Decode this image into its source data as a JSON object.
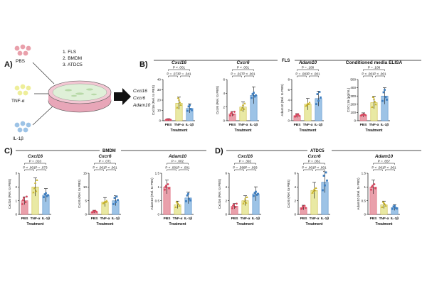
{
  "colors": {
    "PBS": "#e9a0ab",
    "TNF": "#e9e9a4",
    "IL1B": "#9dc3e6",
    "PBSd": "#d9475f",
    "TNFd": "#c9b32a",
    "IL1Bd": "#3f7fc1"
  },
  "sections": {
    "A": "A)",
    "B": "B)",
    "C": "C)",
    "D": "D)",
    "FLS": "FLS",
    "BMDM": "BMDM",
    "ATDC5": "ATDC5"
  },
  "schematic": {
    "groups": [
      "PBS",
      "TNF-α",
      "IL-1β"
    ],
    "cells": [
      "1.  FLS",
      "2.  BMDM",
      "3.  ATDC5"
    ],
    "genes": [
      "Cxcl16",
      "Cxcr6",
      "Adam10"
    ]
  },
  "chart_data": [
    {
      "id": "B1",
      "type": "bar",
      "title": "Cxcl16",
      "ylabel": "Cxcl16 (Rel. to PBS)",
      "xlabel": "Treatment",
      "categories": [
        "PBS",
        "TNF-α",
        "IL-1β"
      ],
      "values": [
        1,
        17,
        12
      ],
      "ylim": [
        0,
        40
      ],
      "yticks": [
        0,
        10,
        20,
        30,
        40
      ],
      "pvalues": [
        "P = .073",
        "P < .001",
        "P = .041"
      ]
    },
    {
      "id": "B2",
      "type": "bar",
      "title": "Cxcr6",
      "ylabel": "Cxcr6 (Rel. to PBS)",
      "xlabel": "Treatment",
      "categories": [
        "PBS",
        "TNF-α",
        "IL-1β"
      ],
      "values": [
        1,
        2,
        3.7
      ],
      "ylim": [
        0,
        6
      ],
      "yticks": [
        0,
        2,
        4,
        6
      ],
      "pvalues": [
        "P = .027",
        "P < .001",
        "P < .001"
      ]
    },
    {
      "id": "B3",
      "type": "bar",
      "title": "Adam10",
      "ylabel": "Adam10 (Rel. to PBS)",
      "xlabel": "Treatment",
      "categories": [
        "PBS",
        "TNF-α",
        "IL-1β"
      ],
      "values": [
        1,
        3.2,
        4.3
      ],
      "ylim": [
        0,
        8
      ],
      "yticks": [
        0,
        2,
        4,
        6,
        8
      ],
      "pvalues": [
        "P = .003",
        "P = .108",
        "P < .001"
      ]
    },
    {
      "id": "B4",
      "type": "bar",
      "title": "Conditioned media ELISA",
      "ylabel": "CXCL16 (pg/mL)",
      "xlabel": "Treatment",
      "categories": [
        "PBS",
        "TNF-α",
        "IL-1β"
      ],
      "values": [
        70,
        220,
        300
      ],
      "ylim": [
        0,
        500
      ],
      "yticks": [
        0,
        100,
        200,
        300,
        400,
        500
      ],
      "pvalues": [
        "P < .001",
        "P = .108",
        "P < .001"
      ]
    },
    {
      "id": "C1",
      "type": "bar",
      "title": "Cxcl16",
      "ylabel": "Cxcl16 (Rel. to PBS)",
      "xlabel": "Treatment",
      "categories": [
        "PBS",
        "TNF-α",
        "IL-1β"
      ],
      "values": [
        1,
        2,
        1.4
      ],
      "ylim": [
        0,
        3
      ],
      "yticks": [
        0,
        1,
        2,
        3
      ],
      "pvalues": [
        "P < .001",
        "P = .010",
        "P = .073"
      ]
    },
    {
      "id": "C2",
      "type": "bar",
      "title": "Cxcr6",
      "ylabel": "Cxcr6 (Rel. to PBS)",
      "xlabel": "Treatment",
      "categories": [
        "PBS",
        "TNF-α",
        "IL-1β"
      ],
      "values": [
        1,
        4.5,
        5
      ],
      "ylim": [
        0,
        15
      ],
      "yticks": [
        0,
        5,
        10,
        15
      ],
      "pvalues": [
        "P < .001",
        "P = .071",
        "P < .001"
      ]
    },
    {
      "id": "C3",
      "type": "bar",
      "title": "Adam10",
      "ylabel": "Adam10 (Rel. to PBS)",
      "xlabel": "Treatment",
      "categories": [
        "PBS",
        "TNF-α",
        "IL-1β"
      ],
      "values": [
        1,
        0.35,
        0.6
      ],
      "ylim": [
        0,
        1.5
      ],
      "yticks": [
        0,
        0.5,
        1,
        1.5
      ],
      "pvalues": [
        "P < .001",
        "P = .002",
        "P < .001"
      ]
    },
    {
      "id": "D1",
      "type": "bar",
      "title": "Cxcl16",
      "ylabel": "Cxcl16 (Rel. to PBS)",
      "xlabel": "Treatment",
      "categories": [
        "PBS",
        "TNF-α",
        "IL-1β"
      ],
      "values": [
        1.2,
        2,
        3
      ],
      "ylim": [
        0,
        6
      ],
      "yticks": [
        0,
        2,
        4,
        6
      ],
      "pvalues": [
        "P = .568",
        "P = .392",
        "P = .093"
      ]
    },
    {
      "id": "D2",
      "type": "bar",
      "title": "Cxcr6",
      "ylabel": "Cxcr6 (Rel. to PBS)",
      "xlabel": "Treatment",
      "categories": [
        "PBS",
        "TNF-α",
        "IL-1β"
      ],
      "values": [
        1,
        3.5,
        4.7
      ],
      "ylim": [
        0,
        6
      ],
      "yticks": [
        0,
        2,
        4,
        6
      ],
      "pvalues": [
        "P < .001",
        "P = .061",
        "P < .001"
      ]
    },
    {
      "id": "D3",
      "type": "bar",
      "title": "Adam10",
      "ylabel": "Adam10 (Rel. to PBS)",
      "xlabel": "Treatment",
      "categories": [
        "PBS",
        "TNF-α",
        "IL-1β"
      ],
      "values": [
        1,
        0.35,
        0.25
      ],
      "ylim": [
        0,
        1.5
      ],
      "yticks": [
        0,
        0.5,
        1,
        1.5
      ],
      "pvalues": [
        "P < .001",
        "P = .657",
        "P < .001"
      ]
    }
  ]
}
